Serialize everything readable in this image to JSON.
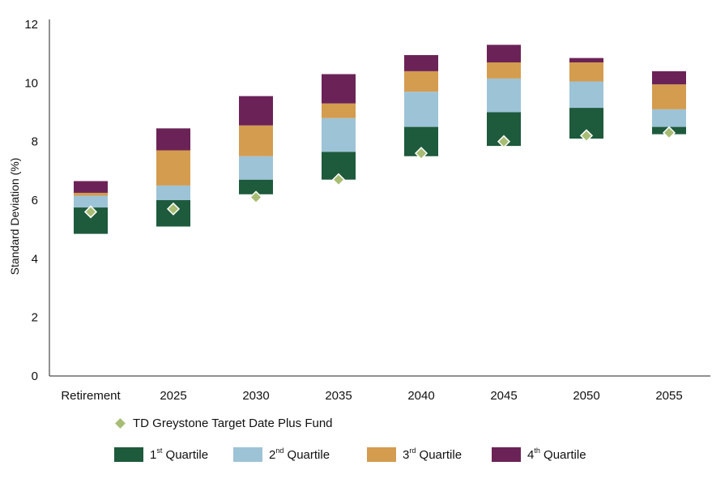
{
  "chart_data": {
    "type": "bar",
    "subtype": "floating-stacked-bar",
    "title": "",
    "ylabel": "Standard Deviation (%)",
    "ylim": [
      0,
      12
    ],
    "yticks": [
      0,
      2,
      4,
      6,
      8,
      10,
      12
    ],
    "categories": [
      "Retirement",
      "2025",
      "2030",
      "2035",
      "2040",
      "2045",
      "2050",
      "2055"
    ],
    "quartile_bounds": [
      [
        4.85,
        5.75,
        6.15,
        6.25,
        6.65
      ],
      [
        5.1,
        6.0,
        6.5,
        7.7,
        8.45
      ],
      [
        6.2,
        6.7,
        7.5,
        8.55,
        9.55
      ],
      [
        6.7,
        7.65,
        8.8,
        9.3,
        10.3
      ],
      [
        7.5,
        8.5,
        9.7,
        10.4,
        10.95
      ],
      [
        7.85,
        9.0,
        10.15,
        10.7,
        11.3
      ],
      [
        8.1,
        9.15,
        10.05,
        10.7,
        10.85
      ],
      [
        8.25,
        8.5,
        9.1,
        9.95,
        10.4
      ]
    ],
    "series": [
      {
        "name": "1st Quartile",
        "color": "#1e5a3c"
      },
      {
        "name": "2nd Quartile",
        "color": "#9dc3d7"
      },
      {
        "name": "3rd Quartile",
        "color": "#d49c4f"
      },
      {
        "name": "4th Quartile",
        "color": "#6b2357"
      }
    ],
    "fund": {
      "name": "TD Greystone Target Date Plus Fund",
      "color": "#a7bd74",
      "values": [
        5.6,
        5.7,
        6.1,
        6.7,
        7.6,
        8.0,
        8.2,
        8.3
      ]
    },
    "grid": false,
    "legend_position": "bottom"
  },
  "legend": {
    "fund_label": "TD Greystone Target Date Plus Fund",
    "q1": {
      "num": "1",
      "sup": "st",
      "rest": " Quartile"
    },
    "q2": {
      "num": "2",
      "sup": "nd",
      "rest": " Quartile"
    },
    "q3": {
      "num": "3",
      "sup": "rd",
      "rest": " Quartile"
    },
    "q4": {
      "num": "4",
      "sup": "th",
      "rest": " Quartile"
    }
  }
}
